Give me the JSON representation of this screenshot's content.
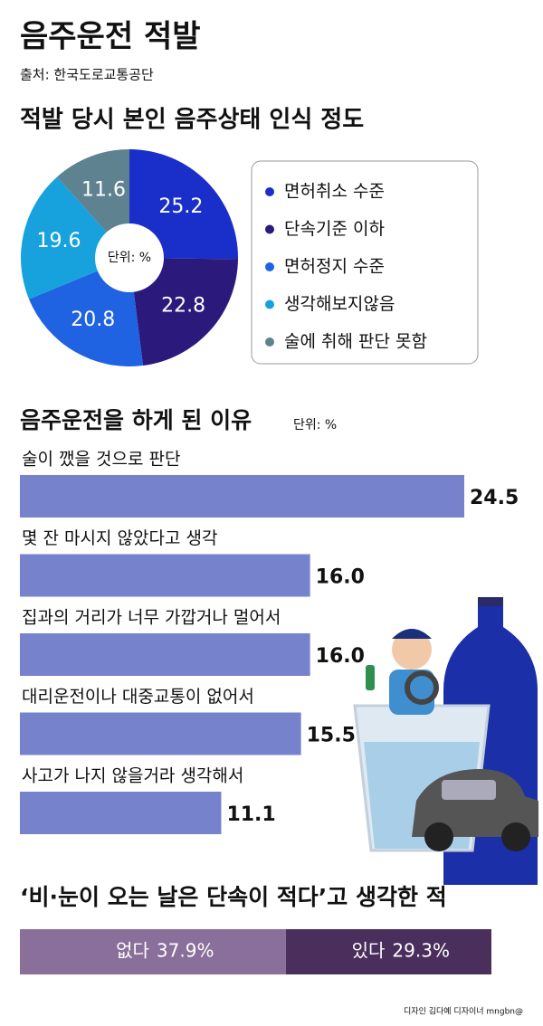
{
  "header": {
    "title": "음주운전 적발",
    "source": "출처: 한국도로교통공단"
  },
  "chart_data": [
    {
      "type": "pie",
      "title": "적발 당시 본인 음주상태 인식 정도",
      "unit_label": "단위: %",
      "categories": [
        "면허취소 수준",
        "단속기준 이하",
        "면허정지 수준",
        "생각해보지않음",
        "술에 취해 판단 못함"
      ],
      "values": [
        25.2,
        22.8,
        20.8,
        19.6,
        11.6
      ],
      "colors": [
        "#1a2fc9",
        "#2b1a7c",
        "#1f63e2",
        "#17a2dd",
        "#5f8290"
      ]
    },
    {
      "type": "bar",
      "title": "음주운전을 하게 된 이유",
      "unit_label": "단위: %",
      "categories": [
        "술이 깼을 것으로 판단",
        "몇 잔 마시지 않았다고 생각",
        "집과의 거리가 너무 가깝거나 멀어서",
        "대리운전이나 대중교통이 없어서",
        "사고가 나지 않을거라 생각해서"
      ],
      "values": [
        24.5,
        16.0,
        16.0,
        15.5,
        11.1
      ],
      "value_labels": [
        "24.5",
        "16.0",
        "16.0",
        "15.5",
        "11.1"
      ],
      "color": "#7782cc"
    },
    {
      "type": "stacked",
      "title": "‘비·눈이 오는 날은 단속이 적다’고 생각한 적",
      "categories": [
        "없다",
        "있다"
      ],
      "values": [
        37.9,
        29.3
      ],
      "value_labels": [
        "37.9%",
        "29.3%"
      ],
      "colors": [
        "#8a6f9a",
        "#4a2f5c"
      ]
    }
  ],
  "footer": "디자인 김다예 디자이너 mngbn@"
}
